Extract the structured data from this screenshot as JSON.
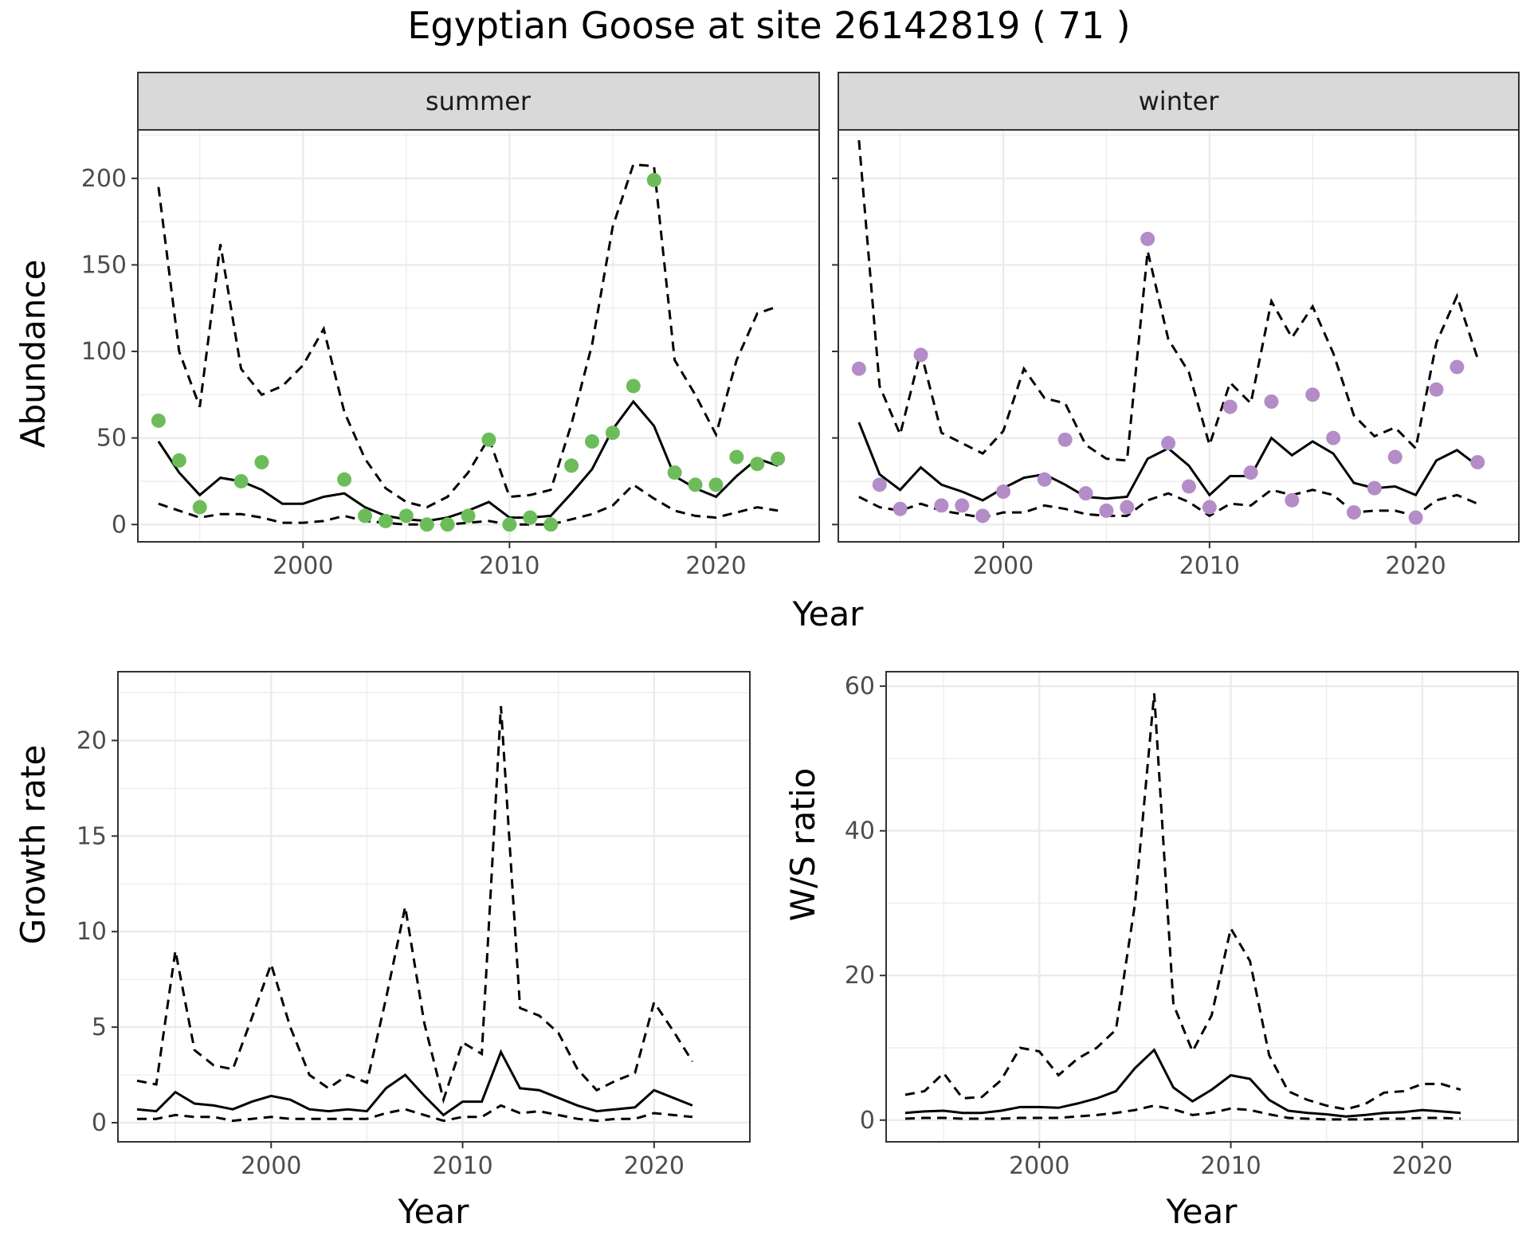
{
  "title": "Egyptian Goose at site 26142819 ( 71 )",
  "colors": {
    "summer_points": "#6cbd5a",
    "winter_points": "#b48cc8",
    "line": "#000000",
    "grid": "#ebebeb",
    "strip_fill": "#d9d9d9",
    "panel_border": "#333333"
  },
  "chart_data": [
    {
      "id": "abundance",
      "type": "line",
      "title": "",
      "xlabel": "Year",
      "ylabel": "Abundance",
      "xlim": [
        1992,
        2025
      ],
      "ylim": [
        -10,
        228
      ],
      "xticks": [
        2000,
        2010,
        2020
      ],
      "yticks": [
        0,
        50,
        100,
        150,
        200
      ],
      "grid": true,
      "legend": "none",
      "facets": [
        {
          "id": "summer",
          "label": "summer",
          "point_color": "#6cbd5a",
          "years": [
            1993,
            1994,
            1995,
            1996,
            1997,
            1998,
            1999,
            2000,
            2001,
            2002,
            2003,
            2004,
            2005,
            2006,
            2007,
            2008,
            2009,
            2010,
            2011,
            2012,
            2013,
            2014,
            2015,
            2016,
            2017,
            2018,
            2019,
            2020,
            2021,
            2022,
            2023
          ],
          "estimate": [
            48,
            30,
            17,
            27,
            25,
            20,
            12,
            12,
            16,
            18,
            10,
            5,
            3,
            2,
            4,
            8,
            13,
            4,
            4,
            5,
            18,
            32,
            55,
            71,
            57,
            28,
            21,
            16,
            28,
            38,
            34
          ],
          "upper": [
            195,
            100,
            68,
            162,
            90,
            75,
            80,
            92,
            113,
            65,
            38,
            21,
            13,
            10,
            16,
            30,
            50,
            16,
            17,
            20,
            58,
            104,
            172,
            208,
            207,
            95,
            75,
            52,
            95,
            122,
            126
          ],
          "lower": [
            12,
            8,
            4,
            6,
            6,
            4,
            1,
            1,
            2,
            5,
            2,
            1,
            0,
            0,
            0,
            1,
            2,
            0,
            0,
            0,
            3,
            6,
            11,
            23,
            15,
            8,
            5,
            4,
            7,
            10,
            8
          ],
          "observed": [
            60,
            37,
            10,
            null,
            25,
            36,
            null,
            null,
            null,
            26,
            5,
            2,
            5,
            0,
            0,
            5,
            49,
            0,
            4,
            0,
            34,
            48,
            53,
            80,
            199,
            30,
            23,
            23,
            39,
            35,
            38
          ]
        },
        {
          "id": "winter",
          "label": "winter",
          "point_color": "#b48cc8",
          "years": [
            1993,
            1994,
            1995,
            1996,
            1997,
            1998,
            1999,
            2000,
            2001,
            2002,
            2003,
            2004,
            2005,
            2006,
            2007,
            2008,
            2009,
            2010,
            2011,
            2012,
            2013,
            2014,
            2015,
            2016,
            2017,
            2018,
            2019,
            2020,
            2021,
            2022,
            2023
          ],
          "estimate": [
            59,
            29,
            20,
            33,
            23,
            19,
            14,
            21,
            27,
            29,
            23,
            16,
            15,
            16,
            38,
            44,
            34,
            17,
            28,
            28,
            50,
            40,
            48,
            41,
            24,
            21,
            22,
            17,
            37,
            43,
            34
          ],
          "upper": [
            222,
            80,
            52,
            100,
            53,
            47,
            41,
            54,
            90,
            73,
            70,
            46,
            38,
            37,
            158,
            107,
            88,
            46,
            82,
            70,
            129,
            108,
            126,
            99,
            63,
            51,
            56,
            44,
            105,
            132,
            96
          ],
          "lower": [
            16,
            10,
            8,
            12,
            8,
            6,
            4,
            7,
            7,
            11,
            9,
            6,
            5,
            5,
            14,
            18,
            13,
            5,
            12,
            11,
            20,
            17,
            20,
            17,
            7,
            8,
            8,
            5,
            14,
            17,
            12
          ],
          "observed": [
            90,
            23,
            9,
            98,
            11,
            11,
            5,
            19,
            null,
            26,
            49,
            18,
            8,
            10,
            165,
            47,
            22,
            10,
            68,
            30,
            71,
            14,
            75,
            50,
            7,
            21,
            39,
            4,
            78,
            91,
            36
          ]
        }
      ]
    },
    {
      "id": "growth",
      "type": "line",
      "title": "",
      "xlabel": "Year",
      "ylabel": "Growth rate",
      "xlim": [
        1992,
        2025
      ],
      "ylim": [
        -1,
        23.6
      ],
      "xticks": [
        2000,
        2010,
        2020
      ],
      "yticks": [
        0,
        5,
        10,
        15,
        20
      ],
      "grid": true,
      "legend": "none",
      "years": [
        1993,
        1994,
        1995,
        1996,
        1997,
        1998,
        1999,
        2000,
        2001,
        2002,
        2003,
        2004,
        2005,
        2006,
        2007,
        2008,
        2009,
        2010,
        2011,
        2012,
        2013,
        2014,
        2015,
        2016,
        2017,
        2018,
        2019,
        2020,
        2021,
        2022
      ],
      "estimate": [
        0.7,
        0.6,
        1.6,
        1.0,
        0.9,
        0.7,
        1.1,
        1.4,
        1.2,
        0.7,
        0.6,
        0.7,
        0.6,
        1.8,
        2.5,
        1.4,
        0.4,
        1.1,
        1.1,
        3.7,
        1.8,
        1.7,
        1.3,
        0.9,
        0.6,
        0.7,
        0.8,
        1.7,
        1.3,
        0.9
      ],
      "upper": [
        2.2,
        2.0,
        9.0,
        3.8,
        3.0,
        2.8,
        5.5,
        8.3,
        5.0,
        2.5,
        1.8,
        2.5,
        2.1,
        6.5,
        11.3,
        5.2,
        1.2,
        4.2,
        3.6,
        21.8,
        6.0,
        5.6,
        4.7,
        2.8,
        1.7,
        2.2,
        2.6,
        6.3,
        4.8,
        3.2
      ],
      "lower": [
        0.2,
        0.2,
        0.4,
        0.3,
        0.3,
        0.1,
        0.2,
        0.3,
        0.2,
        0.2,
        0.2,
        0.2,
        0.2,
        0.5,
        0.7,
        0.4,
        0.1,
        0.3,
        0.3,
        0.9,
        0.5,
        0.6,
        0.4,
        0.2,
        0.1,
        0.2,
        0.2,
        0.5,
        0.4,
        0.3
      ]
    },
    {
      "id": "ws",
      "type": "line",
      "title": "",
      "xlabel": "Year",
      "ylabel": "W/S ratio",
      "xlim": [
        1992,
        2025
      ],
      "ylim": [
        -3,
        62
      ],
      "xticks": [
        2000,
        2010,
        2020
      ],
      "yticks": [
        0,
        20,
        40,
        60
      ],
      "grid": true,
      "legend": "none",
      "years": [
        1993,
        1994,
        1995,
        1996,
        1997,
        1998,
        1999,
        2000,
        2001,
        2002,
        2003,
        2004,
        2005,
        2006,
        2007,
        2008,
        2009,
        2010,
        2011,
        2012,
        2013,
        2014,
        2015,
        2016,
        2017,
        2018,
        2019,
        2020,
        2021,
        2022
      ],
      "estimate": [
        1.0,
        1.2,
        1.3,
        1.0,
        1.0,
        1.3,
        1.8,
        1.8,
        1.7,
        2.3,
        3.0,
        4.0,
        7.2,
        9.7,
        4.5,
        2.6,
        4.2,
        6.2,
        5.7,
        2.8,
        1.3,
        1.0,
        0.8,
        0.5,
        0.7,
        1.0,
        1.1,
        1.4,
        1.2,
        1.0
      ],
      "upper": [
        3.5,
        4.0,
        6.5,
        3.0,
        3.2,
        5.5,
        10.0,
        9.5,
        6.2,
        8.5,
        10.0,
        12.5,
        30.0,
        59.0,
        16.0,
        9.5,
        14.5,
        26.5,
        22.0,
        9.0,
        4.0,
        2.8,
        2.0,
        1.5,
        2.2,
        3.8,
        4.0,
        5.0,
        5.0,
        4.2
      ],
      "lower": [
        0.2,
        0.3,
        0.3,
        0.2,
        0.2,
        0.2,
        0.3,
        0.3,
        0.3,
        0.5,
        0.7,
        1.0,
        1.4,
        2.0,
        1.5,
        0.7,
        1.0,
        1.6,
        1.4,
        0.8,
        0.3,
        0.2,
        0.1,
        0.1,
        0.1,
        0.2,
        0.2,
        0.3,
        0.3,
        0.2
      ]
    }
  ]
}
